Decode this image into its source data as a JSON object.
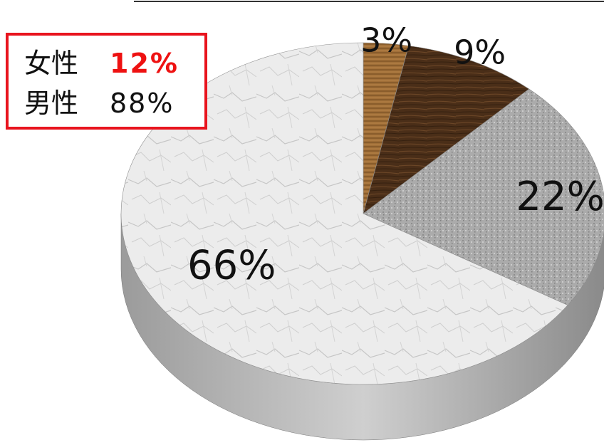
{
  "legend": {
    "items": [
      {
        "label": "女性",
        "value": "12%",
        "highlight": true
      },
      {
        "label": "男性",
        "value": "88%",
        "highlight": false
      }
    ],
    "border_color": "#e8141e",
    "highlight_color": "#ee1111"
  },
  "chart_data": {
    "type": "pie",
    "style": "3d-textured",
    "slices": [
      {
        "value": 3,
        "label": "3%",
        "fill": "#9a6a35",
        "texture": "light-wood"
      },
      {
        "value": 9,
        "label": "9%",
        "fill": "#4a2e18",
        "texture": "dark-wood"
      },
      {
        "value": 22,
        "label": "22%",
        "fill": "#a9a9a9",
        "texture": "granite"
      },
      {
        "value": 66,
        "label": "66%",
        "fill": "#e9e9e9",
        "texture": "white-marble"
      }
    ],
    "start_angle": "12 o'clock",
    "direction": "clockwise"
  }
}
